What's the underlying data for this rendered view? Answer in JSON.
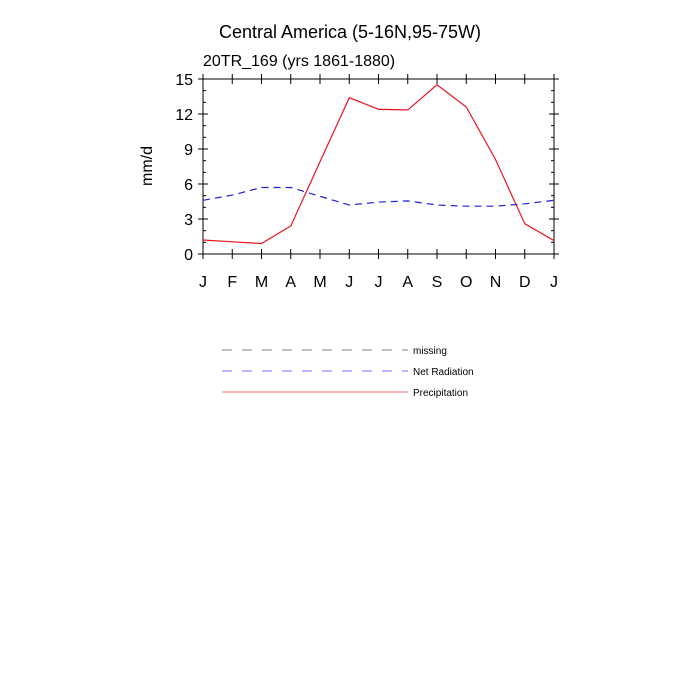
{
  "chart_data": {
    "type": "line",
    "title": "Central America (5-16N,95-75W)",
    "subtitle": "20TR_169 (yrs 1861-1880)",
    "ylabel": "mm/d",
    "xlabel": "",
    "ylim": [
      0,
      15
    ],
    "yticks": [
      0,
      3,
      6,
      9,
      12,
      15
    ],
    "categories": [
      "J",
      "F",
      "M",
      "A",
      "M",
      "J",
      "J",
      "A",
      "S",
      "O",
      "N",
      "D",
      "J"
    ],
    "grid": false,
    "legend_position": "below",
    "series": [
      {
        "name": "Precipitation",
        "color": "#e8141c",
        "dash": "solid",
        "values": [
          1.2,
          1.05,
          0.9,
          2.4,
          7.9,
          13.4,
          12.4,
          12.35,
          14.5,
          12.6,
          8.1,
          2.6,
          1.15
        ]
      },
      {
        "name": "Net Radiation",
        "color": "#2222cc",
        "dash": "dashed",
        "values": [
          4.6,
          5.05,
          5.7,
          5.7,
          4.95,
          4.2,
          4.45,
          4.55,
          4.2,
          4.1,
          4.1,
          4.3,
          4.6
        ]
      }
    ],
    "legend": [
      {
        "label": "missing",
        "color": "#999999",
        "dash": "dashed"
      },
      {
        "label": "Net Radiation",
        "color": "#8c8cff",
        "dash": "dashed"
      },
      {
        "label": "Precipitation",
        "color": "#ff8c8c",
        "dash": "solid"
      }
    ]
  }
}
